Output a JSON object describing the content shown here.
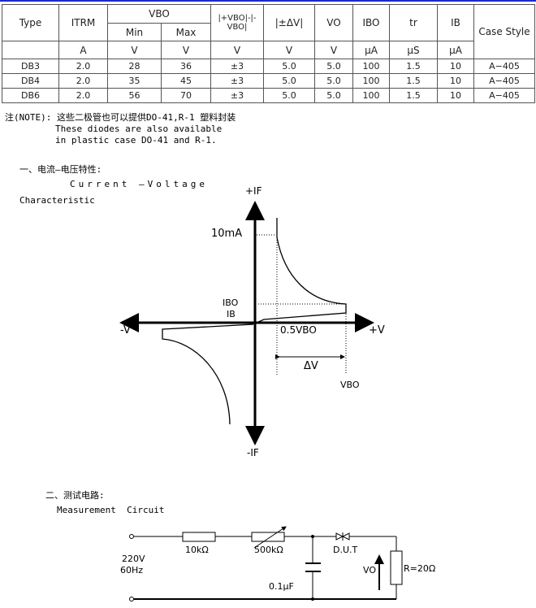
{
  "table": {
    "headers": {
      "type": "Type",
      "itrm": "ITRM",
      "vbo": "VBO",
      "min": "Min",
      "max": "Max",
      "vbo_diff": "|+VBO|-|-VBO|",
      "delta_v": "|±ΔV|",
      "vo": "VO",
      "ibo": "IBO",
      "tr": "tr",
      "ib": "IB",
      "case": "Case Style"
    },
    "units": [
      "A",
      "V",
      "V",
      "V",
      "V",
      "V",
      "μA",
      "μS",
      "μA"
    ],
    "rows": [
      [
        "DB3",
        "2.0",
        "28",
        "36",
        "±3",
        "5.0",
        "5.0",
        "100",
        "1.5",
        "10",
        "A−405"
      ],
      [
        "DB4",
        "2.0",
        "35",
        "45",
        "±3",
        "5.0",
        "5.0",
        "100",
        "1.5",
        "10",
        "A−405"
      ],
      [
        "DB6",
        "2.0",
        "56",
        "70",
        "±3",
        "5.0",
        "5.0",
        "100",
        "1.5",
        "10",
        "A−405"
      ]
    ]
  },
  "note": {
    "line1": "注(NOTE): 这些二极管也可以提供DO-41,R-1 塑料封装",
    "line2": "These diodes are also available",
    "line3": "in plastic case DO-41 and R-1."
  },
  "section1": {
    "title": "一、电流—电压特性:",
    "subtitle1": "Current —Voltage",
    "subtitle2": "Characteristic"
  },
  "chart": {
    "plus_if": "+IF",
    "minus_if": "-IF",
    "minus_v": "-V",
    "plus_v": "+V",
    "ten_ma": "10mA",
    "ibo": "IBO",
    "ib": "IB",
    "half_vbo": "0.5VBO",
    "delta_v": "ΔV",
    "vbo": "VBO"
  },
  "section2": {
    "title": "二、测试电路:",
    "subtitle": "Measurement  Circuit"
  },
  "circuit": {
    "source": "220V",
    "freq": "60Hz",
    "r1": "10kΩ",
    "r2": "500kΩ",
    "cap": "0.1μF",
    "dut": "D.U.T",
    "vo": "VO",
    "r": "R=20Ω"
  }
}
